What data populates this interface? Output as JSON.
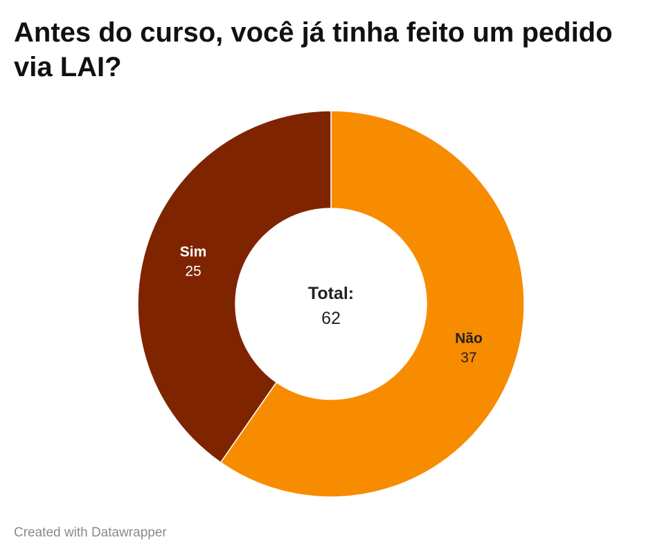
{
  "title": "Antes do curso, você já tinha feito um pedido via LAI?",
  "footer": "Created with Datawrapper",
  "colors": {
    "nao": "#f78c00",
    "sim": "#7f2400",
    "label_dark": "#222222",
    "label_light": "#ffffff"
  },
  "chart_data": {
    "type": "pie",
    "variant": "donut",
    "title": "Antes do curso, você já tinha feito um pedido via LAI?",
    "center_label": "Total:",
    "center_value": "62",
    "slices": [
      {
        "label": "Não",
        "value": 37,
        "color": "#f78c00"
      },
      {
        "label": "Sim",
        "value": 25,
        "color": "#7f2400"
      }
    ]
  }
}
